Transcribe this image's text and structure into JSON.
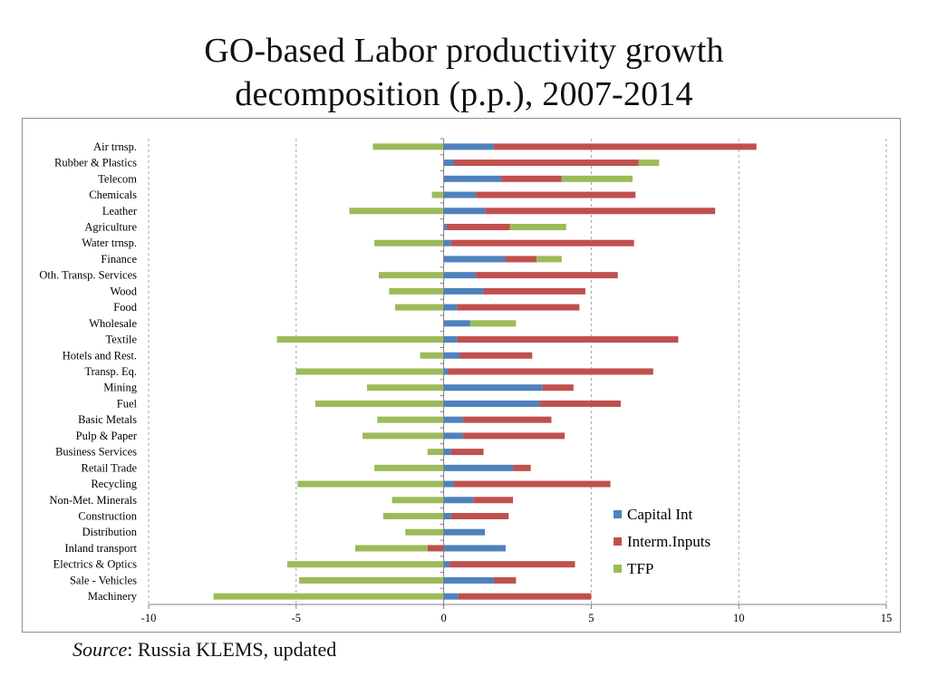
{
  "title": {
    "line1": "GO-based Labor productivity growth",
    "line2": "decomposition (p.p.), 2007-2014"
  },
  "source": {
    "label": "Source",
    "text": ": Russia KLEMS, updated"
  },
  "colors": {
    "capital": "#4f81bd",
    "interm": "#c0504d",
    "tfp": "#9bbb59",
    "grid": "#a6a6a6",
    "axis": "#7f7f7f"
  },
  "chart_data": {
    "type": "bar",
    "orientation": "horizontal",
    "stacked": true,
    "categories": [
      "Air trnsp.",
      "Rubber & Plastics",
      "Telecom",
      "Chemicals",
      "Leather",
      "Agriculture",
      "Water trnsp.",
      "Finance",
      "Oth. Transp. Services",
      "Wood",
      "Food",
      "Wholesale",
      "Textile",
      "Hotels and Rest.",
      "Transp. Eq.",
      "Mining",
      "Fuel",
      "Basic Metals",
      "Pulp & Paper",
      "Business Services",
      "Retail Trade",
      "Recycling",
      "Non-Met. Minerals",
      "Construction",
      "Distribution",
      "Inland transport",
      "Electrics & Optics",
      "Sale - Vehicles",
      "Machinery"
    ],
    "series": [
      {
        "name": "Capital Int",
        "color": "#4f81bd",
        "values": [
          1.7,
          0.35,
          1.95,
          1.1,
          1.4,
          0.1,
          0.25,
          2.1,
          1.1,
          1.35,
          0.45,
          0.9,
          0.45,
          0.55,
          0.15,
          3.35,
          3.25,
          0.65,
          0.65,
          0.25,
          2.35,
          0.35,
          1.0,
          0.25,
          1.4,
          2.1,
          0.2,
          1.7,
          0.5
        ]
      },
      {
        "name": "Interm.Inputs",
        "color": "#c0504d",
        "values": [
          8.9,
          6.25,
          2.05,
          5.4,
          7.8,
          2.15,
          6.2,
          1.05,
          4.8,
          3.45,
          4.15,
          0,
          7.5,
          2.45,
          6.95,
          1.05,
          2.75,
          3.0,
          3.45,
          1.1,
          0.6,
          5.3,
          1.35,
          1.95,
          0,
          -0.55,
          4.25,
          0.75,
          4.5
        ]
      },
      {
        "name": "TFP",
        "color": "#9bbb59",
        "values": [
          -2.4,
          0.7,
          2.4,
          -0.4,
          -3.2,
          1.9,
          -2.35,
          0.85,
          -2.2,
          -1.85,
          -1.65,
          1.55,
          -5.65,
          -0.8,
          -5.0,
          -2.6,
          -4.35,
          -2.25,
          -2.75,
          -0.55,
          -2.35,
          -4.95,
          -1.75,
          -2.05,
          -1.3,
          -2.45,
          -5.3,
          -4.9,
          -7.8
        ]
      }
    ],
    "xlim": [
      -10,
      15
    ],
    "xticks": [
      "-10",
      "-5",
      "0",
      "5",
      "10",
      "15"
    ],
    "xlabel": "",
    "ylabel": "",
    "grid": "vertical dashed",
    "legend": "right-middle"
  }
}
